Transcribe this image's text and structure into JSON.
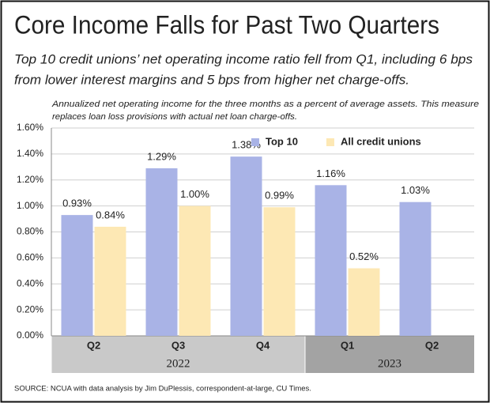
{
  "chart_data": {
    "type": "bar",
    "title": "Core Income Falls for Past Two Quarters",
    "subtitle": [
      "Top 10 credit unions’ net operating income ratio fell from Q1, including 6 bps",
      "from lower interest margins and 5 bps from higher net charge-offs."
    ],
    "note": [
      "Annualized net operating income for the three months as a percent of average assets. This measure",
      "replaces loan loss provisions with actual net loan charge-offs."
    ],
    "source": "SOURCE: NCUA with data analysis by Jim DuPlessis, correspondent-at-large, CU Times.",
    "groups": [
      {
        "name": "2022",
        "categories": [
          "Q2",
          "Q3",
          "Q4"
        ],
        "color": "#c9c9c9"
      },
      {
        "name": "2023",
        "categories": [
          "Q1",
          "Q2"
        ],
        "color": "#a3a3a3"
      }
    ],
    "series": [
      {
        "name": "Top 10",
        "color": "#a9b3e6",
        "values": [
          0.93,
          1.29,
          1.38,
          1.16,
          1.03
        ],
        "value_labels": [
          "0.93%",
          "1.29%",
          "1.38%",
          "1.16%",
          "1.03%"
        ]
      },
      {
        "name": "All credit unions",
        "color": "#fde8b4",
        "values": [
          0.84,
          1.0,
          0.99,
          0.52,
          null
        ],
        "value_labels": [
          "0.84%",
          "1.00%",
          "0.99%",
          "0.52%",
          null
        ]
      }
    ],
    "ylim": [
      0,
      1.6
    ],
    "yticks": [
      {
        "value": 0,
        "label": "0.00%"
      },
      {
        "value": 0.2,
        "label": "0.20%"
      },
      {
        "value": 0.4,
        "label": "0.40%"
      },
      {
        "value": 0.6,
        "label": "0.60%"
      },
      {
        "value": 0.8,
        "label": "0.80%"
      },
      {
        "value": 1.0,
        "label": "1.00%"
      },
      {
        "value": 1.2,
        "label": "1.20%"
      },
      {
        "value": 1.4,
        "label": "1.40%"
      },
      {
        "value": 1.6,
        "label": "1.60%"
      }
    ],
    "grid": true,
    "legend": "upper right"
  }
}
